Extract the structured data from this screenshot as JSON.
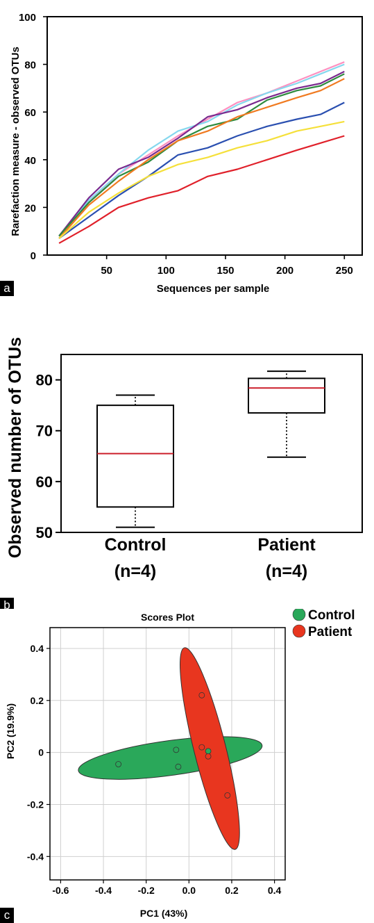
{
  "panel_labels": {
    "a": "a",
    "b": "b",
    "c": "c"
  },
  "colors": {
    "control": "#2aa85a",
    "patient": "#e8361f",
    "box_median": "#cc1f2a"
  },
  "chart_data": [
    {
      "type": "line",
      "xlabel": "Sequences per sample",
      "ylabel": "Rarefaction measure - observed OTUs",
      "xlim": [
        0,
        265
      ],
      "ylim": [
        0,
        100
      ],
      "xticks": [
        50,
        100,
        150,
        200,
        250
      ],
      "yticks": [
        0,
        20,
        40,
        60,
        80,
        100
      ],
      "x": [
        10,
        35,
        60,
        85,
        110,
        135,
        160,
        185,
        210,
        230,
        250
      ],
      "series": [
        {
          "color": "#ff90c0",
          "values": [
            7,
            22,
            34,
            42,
            50,
            57,
            64,
            68,
            73,
            77,
            81
          ]
        },
        {
          "color": "#86d8ee",
          "values": [
            8,
            23,
            34,
            44,
            52,
            56,
            63,
            68,
            72,
            76,
            80
          ]
        },
        {
          "color": "#7a2a8e",
          "values": [
            8,
            24,
            36,
            41,
            49,
            58,
            61,
            66,
            70,
            72,
            77
          ]
        },
        {
          "color": "#2e8b3e",
          "values": [
            8,
            22,
            33,
            39,
            48,
            54,
            57,
            65,
            69,
            71,
            76
          ]
        },
        {
          "color": "#f07a20",
          "values": [
            7,
            21,
            31,
            40,
            48,
            52,
            58,
            62,
            66,
            69,
            74
          ]
        },
        {
          "color": "#2a4fb0",
          "values": [
            7,
            16,
            25,
            33,
            42,
            45,
            50,
            54,
            57,
            59,
            64
          ]
        },
        {
          "color": "#f5e03a",
          "values": [
            7,
            18,
            26,
            33,
            38,
            41,
            45,
            48,
            52,
            54,
            56
          ]
        },
        {
          "color": "#e0202a",
          "values": [
            5,
            12,
            20,
            24,
            27,
            33,
            36,
            40,
            44,
            47,
            50
          ]
        }
      ]
    },
    {
      "type": "box",
      "ylabel": "Observed number of OTUs",
      "ylim": [
        50,
        85
      ],
      "yticks": [
        50,
        60,
        70,
        80
      ],
      "categories": [
        "Control",
        "Patient"
      ],
      "sublabels": [
        "(n=4)",
        "(n=4)"
      ],
      "boxes": [
        {
          "min": 51,
          "q1": 55,
          "median": 65.5,
          "q3": 75,
          "max": 77
        },
        {
          "min": 64.8,
          "q1": 73.5,
          "median": 78.4,
          "q3": 80.3,
          "max": 81.7
        }
      ]
    },
    {
      "type": "scatter",
      "title": "Scores Plot",
      "xlabel": "PC1 (43%)",
      "ylabel": "PC2 (19.9%)",
      "xlim": [
        -0.65,
        0.45
      ],
      "ylim": [
        -0.49,
        0.48
      ],
      "xticks": [
        -0.6,
        -0.4,
        -0.2,
        0,
        0.2,
        0.4
      ],
      "xtick_labels": [
        "-0.6",
        "-0.4",
        "-0.2",
        "0.0",
        "0.2",
        "0.4"
      ],
      "yticks": [
        -0.4,
        -0.2,
        0,
        0.2,
        0.4
      ],
      "ytick_labels": [
        "-0.4",
        "-0.2",
        "0",
        "0.2",
        "0.4"
      ],
      "legend": {
        "position": "right",
        "items": [
          "Control",
          "Patient"
        ]
      },
      "series": [
        {
          "name": "Control",
          "color": "#2aa85a",
          "points": [
            [
              -0.33,
              -0.045
            ],
            [
              -0.06,
              0.01
            ],
            [
              -0.05,
              -0.055
            ],
            [
              0.09,
              0.005
            ]
          ]
        },
        {
          "name": "Patient",
          "color": "#e8361f",
          "points": [
            [
              0.06,
              0.22
            ],
            [
              0.06,
              0.02
            ],
            [
              0.09,
              -0.015
            ],
            [
              0.18,
              -0.165
            ]
          ]
        }
      ]
    }
  ]
}
